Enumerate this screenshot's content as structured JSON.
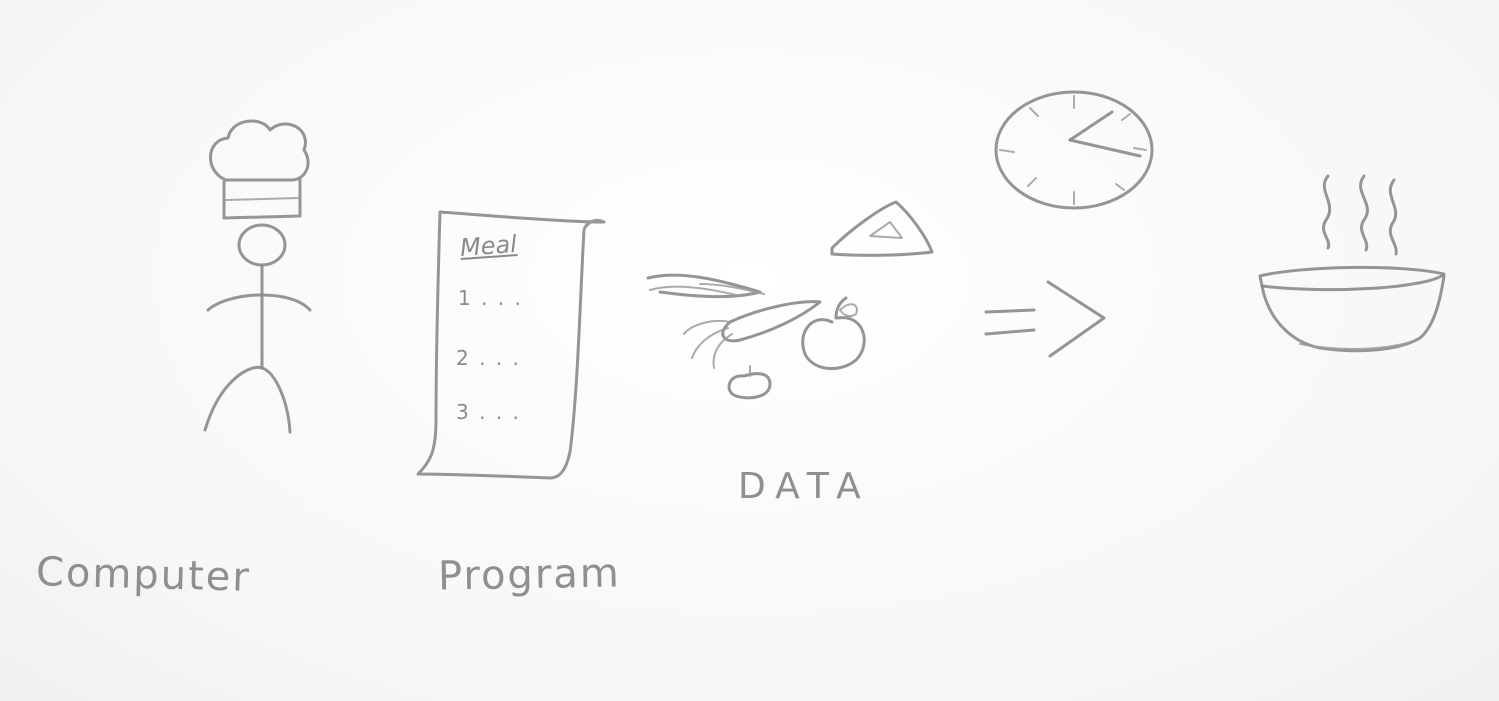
{
  "labels": {
    "computer": "Computer",
    "program": "Program",
    "data": "DATA"
  },
  "recipe": {
    "title": "Meal",
    "steps": [
      "1 . . .",
      "2 . . .",
      "3 . . ."
    ]
  },
  "colors": {
    "pencil": "#8a8a8a",
    "paper": "#fbfbfb"
  }
}
